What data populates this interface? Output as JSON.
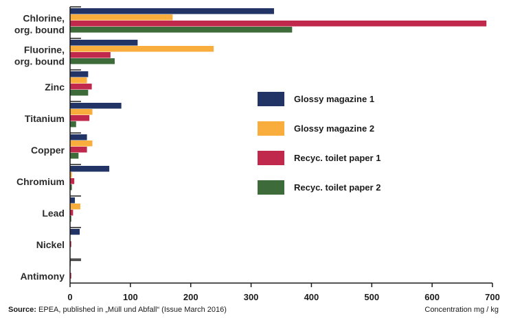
{
  "chart_data": {
    "type": "bar",
    "orientation": "horizontal",
    "categories": [
      [
        "Chlorine,",
        "org. bound"
      ],
      [
        "Fluorine,",
        "org. bound"
      ],
      [
        "Zinc"
      ],
      [
        "Titanium"
      ],
      [
        "Copper"
      ],
      [
        "Chromium"
      ],
      [
        "Lead"
      ],
      [
        "Nickel"
      ],
      [
        "Antimony"
      ]
    ],
    "series": [
      {
        "name": "Glossy magazine 1",
        "color": "#223366",
        "values": [
          338,
          112,
          30,
          85,
          28,
          65,
          8,
          16,
          1
        ]
      },
      {
        "name": "Glossy magazine 2",
        "color": "#f8ad3c",
        "values": [
          170,
          238,
          28,
          37,
          37,
          3,
          17,
          0,
          0
        ]
      },
      {
        "name": "Recyc. toilet paper 1",
        "color": "#c0294b",
        "values": [
          690,
          67,
          36,
          32,
          28,
          7,
          5,
          2,
          2
        ]
      },
      {
        "name": "Recyc. toilet paper 2",
        "color": "#3d6b3a",
        "values": [
          368,
          74,
          30,
          10,
          14,
          3,
          2,
          0,
          0
        ]
      }
    ],
    "xlim": [
      0,
      700
    ],
    "xticks": [
      0,
      100,
      200,
      300,
      400,
      500,
      600,
      700
    ],
    "xlabel": "Concentration mg / kg",
    "legend_position": "right"
  },
  "source": {
    "label": "Source:",
    "text": " EPEA, published in „Müll und Abfall“ (Issue March 2016)"
  }
}
